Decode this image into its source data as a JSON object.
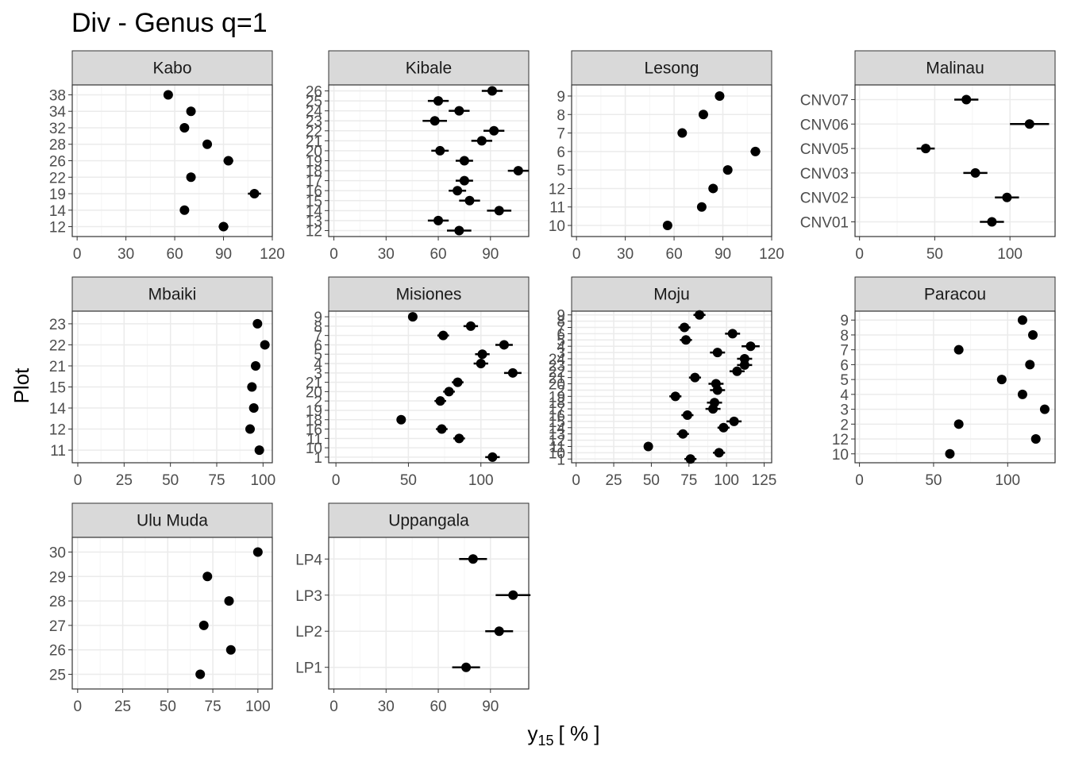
{
  "chart_data": {
    "type": "scatter",
    "title": "Div - Genus q=1",
    "xlabel": "y",
    "xlabel_subscript": "15",
    "xlabel_unit": "[ % ]",
    "ylabel": "Plot",
    "grid": true,
    "colors": {
      "point": "#000000",
      "strip_fill": "#d9d9d9",
      "panel_border": "#333333",
      "grid_major": "#ebebeb",
      "grid_minor": "#f5f5f5"
    },
    "facets": [
      {
        "name": "Kabo",
        "xlim": [
          -3,
          120
        ],
        "xticks": [
          0,
          30,
          60,
          90,
          120
        ],
        "plots": [
          "12",
          "14",
          "19",
          "22",
          "26",
          "28",
          "32",
          "34",
          "38"
        ],
        "values": [
          90,
          66,
          109,
          70,
          93,
          80,
          66,
          70,
          56
        ],
        "errors": [
          3,
          2,
          4,
          2,
          3,
          2,
          2,
          2,
          2
        ]
      },
      {
        "name": "Kibale",
        "xlim": [
          -3,
          112
        ],
        "xticks": [
          0,
          30,
          60,
          90
        ],
        "plots": [
          "12",
          "13",
          "14",
          "15",
          "16",
          "17",
          "18",
          "19",
          "20",
          "21",
          "22",
          "23",
          "24",
          "25",
          "26"
        ],
        "values": [
          72,
          60,
          95,
          78,
          71,
          75,
          106,
          75,
          61,
          85,
          92,
          58,
          72,
          60,
          91
        ],
        "errors": [
          7,
          6,
          7,
          6,
          5,
          5,
          6,
          5,
          5,
          6,
          6,
          7,
          6,
          6,
          6
        ]
      },
      {
        "name": "Lesong",
        "xlim": [
          -3,
          120
        ],
        "xticks": [
          0,
          30,
          60,
          90,
          120
        ],
        "plots": [
          "10",
          "11",
          "12",
          "5",
          "6",
          "7",
          "8",
          "9"
        ],
        "values": [
          56,
          77,
          84,
          93,
          110,
          65,
          78,
          88
        ],
        "errors": [
          2,
          2,
          2,
          2,
          3,
          2,
          2,
          2
        ]
      },
      {
        "name": "Malinau",
        "xlim": [
          -3,
          130
        ],
        "xticks": [
          0,
          50,
          100
        ],
        "plots": [
          "CNV01",
          "CNV02",
          "CNV03",
          "CNV05",
          "CNV06",
          "CNV07"
        ],
        "values": [
          88,
          98,
          77,
          44,
          113,
          71
        ],
        "errors": [
          8,
          8,
          8,
          6,
          13,
          8
        ]
      },
      {
        "name": "Mbaiki",
        "xlim": [
          -3,
          105
        ],
        "xticks": [
          0,
          25,
          50,
          75,
          100
        ],
        "plots": [
          "11",
          "12",
          "14",
          "15",
          "21",
          "22",
          "23"
        ],
        "values": [
          98,
          93,
          95,
          94,
          96,
          101,
          97
        ],
        "errors": [
          1,
          1,
          1,
          1,
          1,
          1,
          1
        ]
      },
      {
        "name": "Misiones",
        "xlim": [
          -5,
          133
        ],
        "xticks": [
          0,
          50,
          100
        ],
        "plots": [
          "1",
          "10",
          "11",
          "16",
          "18",
          "19",
          "2",
          "20",
          "21",
          "3",
          "4",
          "5",
          "6",
          "7",
          "8",
          "9"
        ],
        "values": [
          108,
          85,
          73,
          45,
          72,
          78,
          84,
          122,
          100,
          101,
          116,
          74,
          93,
          53
        ],
        "errors": [
          5,
          4,
          4,
          3,
          4,
          4,
          4,
          6,
          5,
          5,
          6,
          4,
          5,
          3
        ],
        "rows": [
          0,
          2,
          3,
          4,
          6,
          7,
          8,
          9,
          10,
          11,
          12,
          13,
          14,
          15
        ]
      },
      {
        "name": "Moju",
        "xlim": [
          -3,
          130
        ],
        "xticks": [
          0,
          25,
          50,
          75,
          100,
          125
        ],
        "plots": [
          "1",
          "10",
          "11",
          "12",
          "13",
          "14",
          "15",
          "16",
          "17",
          "18",
          "19",
          "2",
          "20",
          "21",
          "22",
          "23",
          "24",
          "3",
          "4",
          "5",
          "6",
          "7",
          "8",
          "9"
        ],
        "values": [
          76,
          95,
          48,
          71,
          98,
          105,
          74,
          91,
          92,
          66,
          94,
          93,
          79,
          107,
          112,
          112,
          94,
          116,
          73,
          104,
          72,
          82
        ],
        "errors": [
          4,
          4,
          3,
          4,
          4,
          5,
          4,
          5,
          5,
          4,
          5,
          5,
          4,
          5,
          5,
          5,
          5,
          6,
          4,
          5,
          4,
          4
        ],
        "rows": [
          0,
          1,
          2,
          4,
          5,
          6,
          7,
          8,
          9,
          10,
          11,
          12,
          13,
          14,
          15,
          16,
          17,
          18,
          19,
          20,
          21,
          23
        ]
      },
      {
        "name": "Paracou",
        "xlim": [
          -3,
          132
        ],
        "xticks": [
          0,
          50,
          100
        ],
        "plots": [
          "10",
          "12",
          "2",
          "3",
          "4",
          "5",
          "6",
          "7",
          "8",
          "9"
        ],
        "values": [
          61,
          119,
          67,
          125,
          110,
          96,
          115,
          67,
          117,
          110
        ],
        "errors": [
          1,
          1,
          1,
          1,
          1,
          1,
          1,
          1,
          1,
          1
        ]
      },
      {
        "name": "Ulu Muda",
        "xlim": [
          -3,
          108
        ],
        "xticks": [
          0,
          25,
          50,
          75,
          100
        ],
        "plots": [
          "25",
          "26",
          "27",
          "28",
          "29",
          "30"
        ],
        "values": [
          68,
          85,
          70,
          84,
          72,
          100
        ],
        "errors": [
          2,
          2,
          2,
          2,
          2,
          2
        ]
      },
      {
        "name": "Uppangala",
        "xlim": [
          -3,
          112
        ],
        "xticks": [
          0,
          30,
          60,
          90
        ],
        "plots": [
          "LP1",
          "LP2",
          "LP3",
          "LP4"
        ],
        "values": [
          76,
          95,
          103,
          80
        ],
        "errors": [
          8,
          8,
          10,
          8
        ]
      }
    ]
  }
}
